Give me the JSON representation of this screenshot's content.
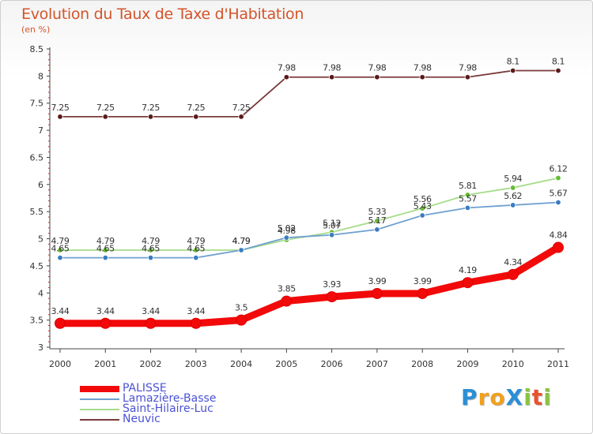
{
  "header": {
    "title": "Evolution du Taux de Taxe d'Habitation",
    "subtitle": "(en %)"
  },
  "logo": {
    "text": "Proxiti",
    "letters": [
      {
        "char": "P",
        "color": "#2a8fd6"
      },
      {
        "char": "r",
        "color": "#f0a01c"
      },
      {
        "char": "o",
        "color": "#f0a01c"
      },
      {
        "char": "X",
        "color": "#2a8fd6"
      },
      {
        "char": "i",
        "color": "#8ac43c"
      },
      {
        "char": "t",
        "color": "#e8532c"
      },
      {
        "char": "i",
        "color": "#8ac43c"
      }
    ]
  },
  "chart_data": {
    "type": "line",
    "title": "Evolution du Taux de Taxe d'Habitation",
    "subtitle": "(en %)",
    "xlabel": "",
    "ylabel": "",
    "x": [
      "2000",
      "2001",
      "2002",
      "2003",
      "2004",
      "2005",
      "2006",
      "2007",
      "2008",
      "2009",
      "2010",
      "2011"
    ],
    "ylim": [
      3,
      8.5
    ],
    "yticks": [
      "3",
      "3.5",
      "4",
      "4.5",
      "5",
      "5.5",
      "6",
      "6.5",
      "7",
      "7.5",
      "8",
      "8.5"
    ],
    "grid": "none",
    "legend_position": "bottom-left",
    "series": [
      {
        "name": "PALISSE",
        "color": "#f20a0a",
        "marker_color": "#f20a0a",
        "highlight": true,
        "values": [
          3.44,
          3.44,
          3.44,
          3.44,
          3.5,
          3.85,
          3.93,
          3.99,
          3.99,
          4.19,
          4.34,
          4.84
        ],
        "labels": [
          "3.44",
          "3.44",
          "3.44",
          "3.44",
          "3.5",
          "3.85",
          "3.93",
          "3.99",
          "3.99",
          "4.19",
          "4.34",
          "4.84"
        ]
      },
      {
        "name": "Lamazière-Basse",
        "color": "#6fa0d0",
        "marker_color": "#3a7cc0",
        "highlight": false,
        "values": [
          4.65,
          4.65,
          4.65,
          4.65,
          4.79,
          5.02,
          5.07,
          5.17,
          5.43,
          5.57,
          5.62,
          5.67
        ],
        "labels": [
          "4.65",
          "4.65",
          "4.65",
          "4.65",
          "4.79",
          "5.02",
          "5.07",
          "5.17",
          "5.43",
          "5.57",
          "5.62",
          "5.67"
        ]
      },
      {
        "name": "Saint-Hilaire-Luc",
        "color": "#a6dc8a",
        "marker_color": "#66bb33",
        "highlight": false,
        "values": [
          4.79,
          4.79,
          4.79,
          4.79,
          4.79,
          4.98,
          5.12,
          5.33,
          5.56,
          5.81,
          5.94,
          6.12
        ],
        "labels": [
          "4.79",
          "4.79",
          "4.79",
          "4.79",
          "4.79",
          "4.98",
          "5.12",
          "5.33",
          "5.56",
          "5.81",
          "5.94",
          "6.12"
        ]
      },
      {
        "name": "Neuvic",
        "color": "#7a3a3a",
        "marker_color": "#5a1a1a",
        "highlight": false,
        "values": [
          7.25,
          7.25,
          7.25,
          7.25,
          7.25,
          7.98,
          7.98,
          7.98,
          7.98,
          7.98,
          8.1,
          8.1
        ],
        "labels": [
          "7.25",
          "7.25",
          "7.25",
          "7.25",
          "7.25",
          "7.98",
          "7.98",
          "7.98",
          "7.98",
          "7.98",
          "8.1",
          "8.1"
        ]
      }
    ]
  }
}
